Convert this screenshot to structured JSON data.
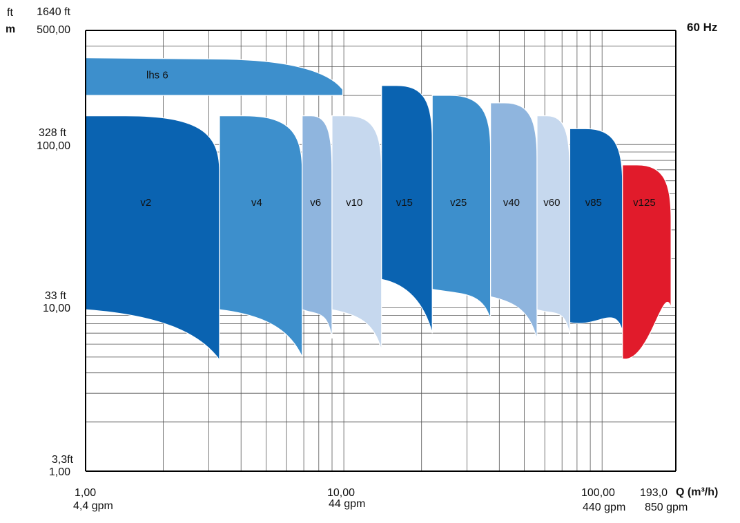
{
  "chart_data": {
    "type": "area",
    "title": "",
    "frequency_label": "60 Hz",
    "x_scale": "log",
    "y_scale": "log",
    "xlim": [
      1,
      193
    ],
    "ylim": [
      1,
      500
    ],
    "y_units": {
      "ft": "ft",
      "m": "m"
    },
    "y_ticks": [
      {
        "m": "500,00",
        "ft": "1640 ft"
      },
      {
        "m": "100,00",
        "ft": "328 ft"
      },
      {
        "m": "10,00",
        "ft": "33 ft"
      },
      {
        "m": "1,00",
        "ft": "3,3ft"
      }
    ],
    "x_ticks": [
      {
        "m3h": "1,00",
        "gpm": "4,4 gpm"
      },
      {
        "m3h": "10,00",
        "gpm": "44 gpm"
      },
      {
        "m3h": "100,00",
        "gpm": "440 gpm"
      },
      {
        "m3h": "193,0",
        "gpm": "850 gpm"
      }
    ],
    "xlabel": "Q (m³/h)",
    "grid": true,
    "series": [
      {
        "name": "lhs 6",
        "color": "#3d8fcc",
        "q_min": 1.0,
        "q_max": 9.9,
        "h_max": 340,
        "h_min": 200
      },
      {
        "name": "v2",
        "color": "#0a63b1",
        "q_min": 1.0,
        "q_max": 3.3,
        "h_max": 150,
        "h_min": 4.8
      },
      {
        "name": "v4",
        "color": "#3d8fcc",
        "q_min": 3.3,
        "q_max": 6.9,
        "h_max": 150,
        "h_min": 5.0
      },
      {
        "name": "v6",
        "color": "#8fb5de",
        "q_min": 6.9,
        "q_max": 9.0,
        "h_max": 150,
        "h_min": 6.5
      },
      {
        "name": "v10",
        "color": "#c6d8ee",
        "q_min": 9.0,
        "q_max": 14.0,
        "h_max": 150,
        "h_min": 5.5
      },
      {
        "name": "v15",
        "color": "#0a63b1",
        "q_min": 14.0,
        "q_max": 22.0,
        "h_max": 230,
        "h_min": 7.0
      },
      {
        "name": "v25",
        "color": "#3d8fcc",
        "q_min": 22.0,
        "q_max": 37.0,
        "h_max": 200,
        "h_min": 8.5
      },
      {
        "name": "v40",
        "color": "#8fb5de",
        "q_min": 37.0,
        "q_max": 56.0,
        "h_max": 180,
        "h_min": 6.4
      },
      {
        "name": "v60",
        "color": "#c6d8ee",
        "q_min": 56.0,
        "q_max": 75.0,
        "h_max": 150,
        "h_min": 6.8
      },
      {
        "name": "v85",
        "color": "#0a63b1",
        "q_min": 75.0,
        "q_max": 120.0,
        "h_max": 125,
        "h_min": 7.2
      },
      {
        "name": "v125",
        "color": "#e11b2b",
        "q_min": 120.0,
        "q_max": 185.0,
        "h_max": 75,
        "h_min": 10.0
      }
    ]
  }
}
